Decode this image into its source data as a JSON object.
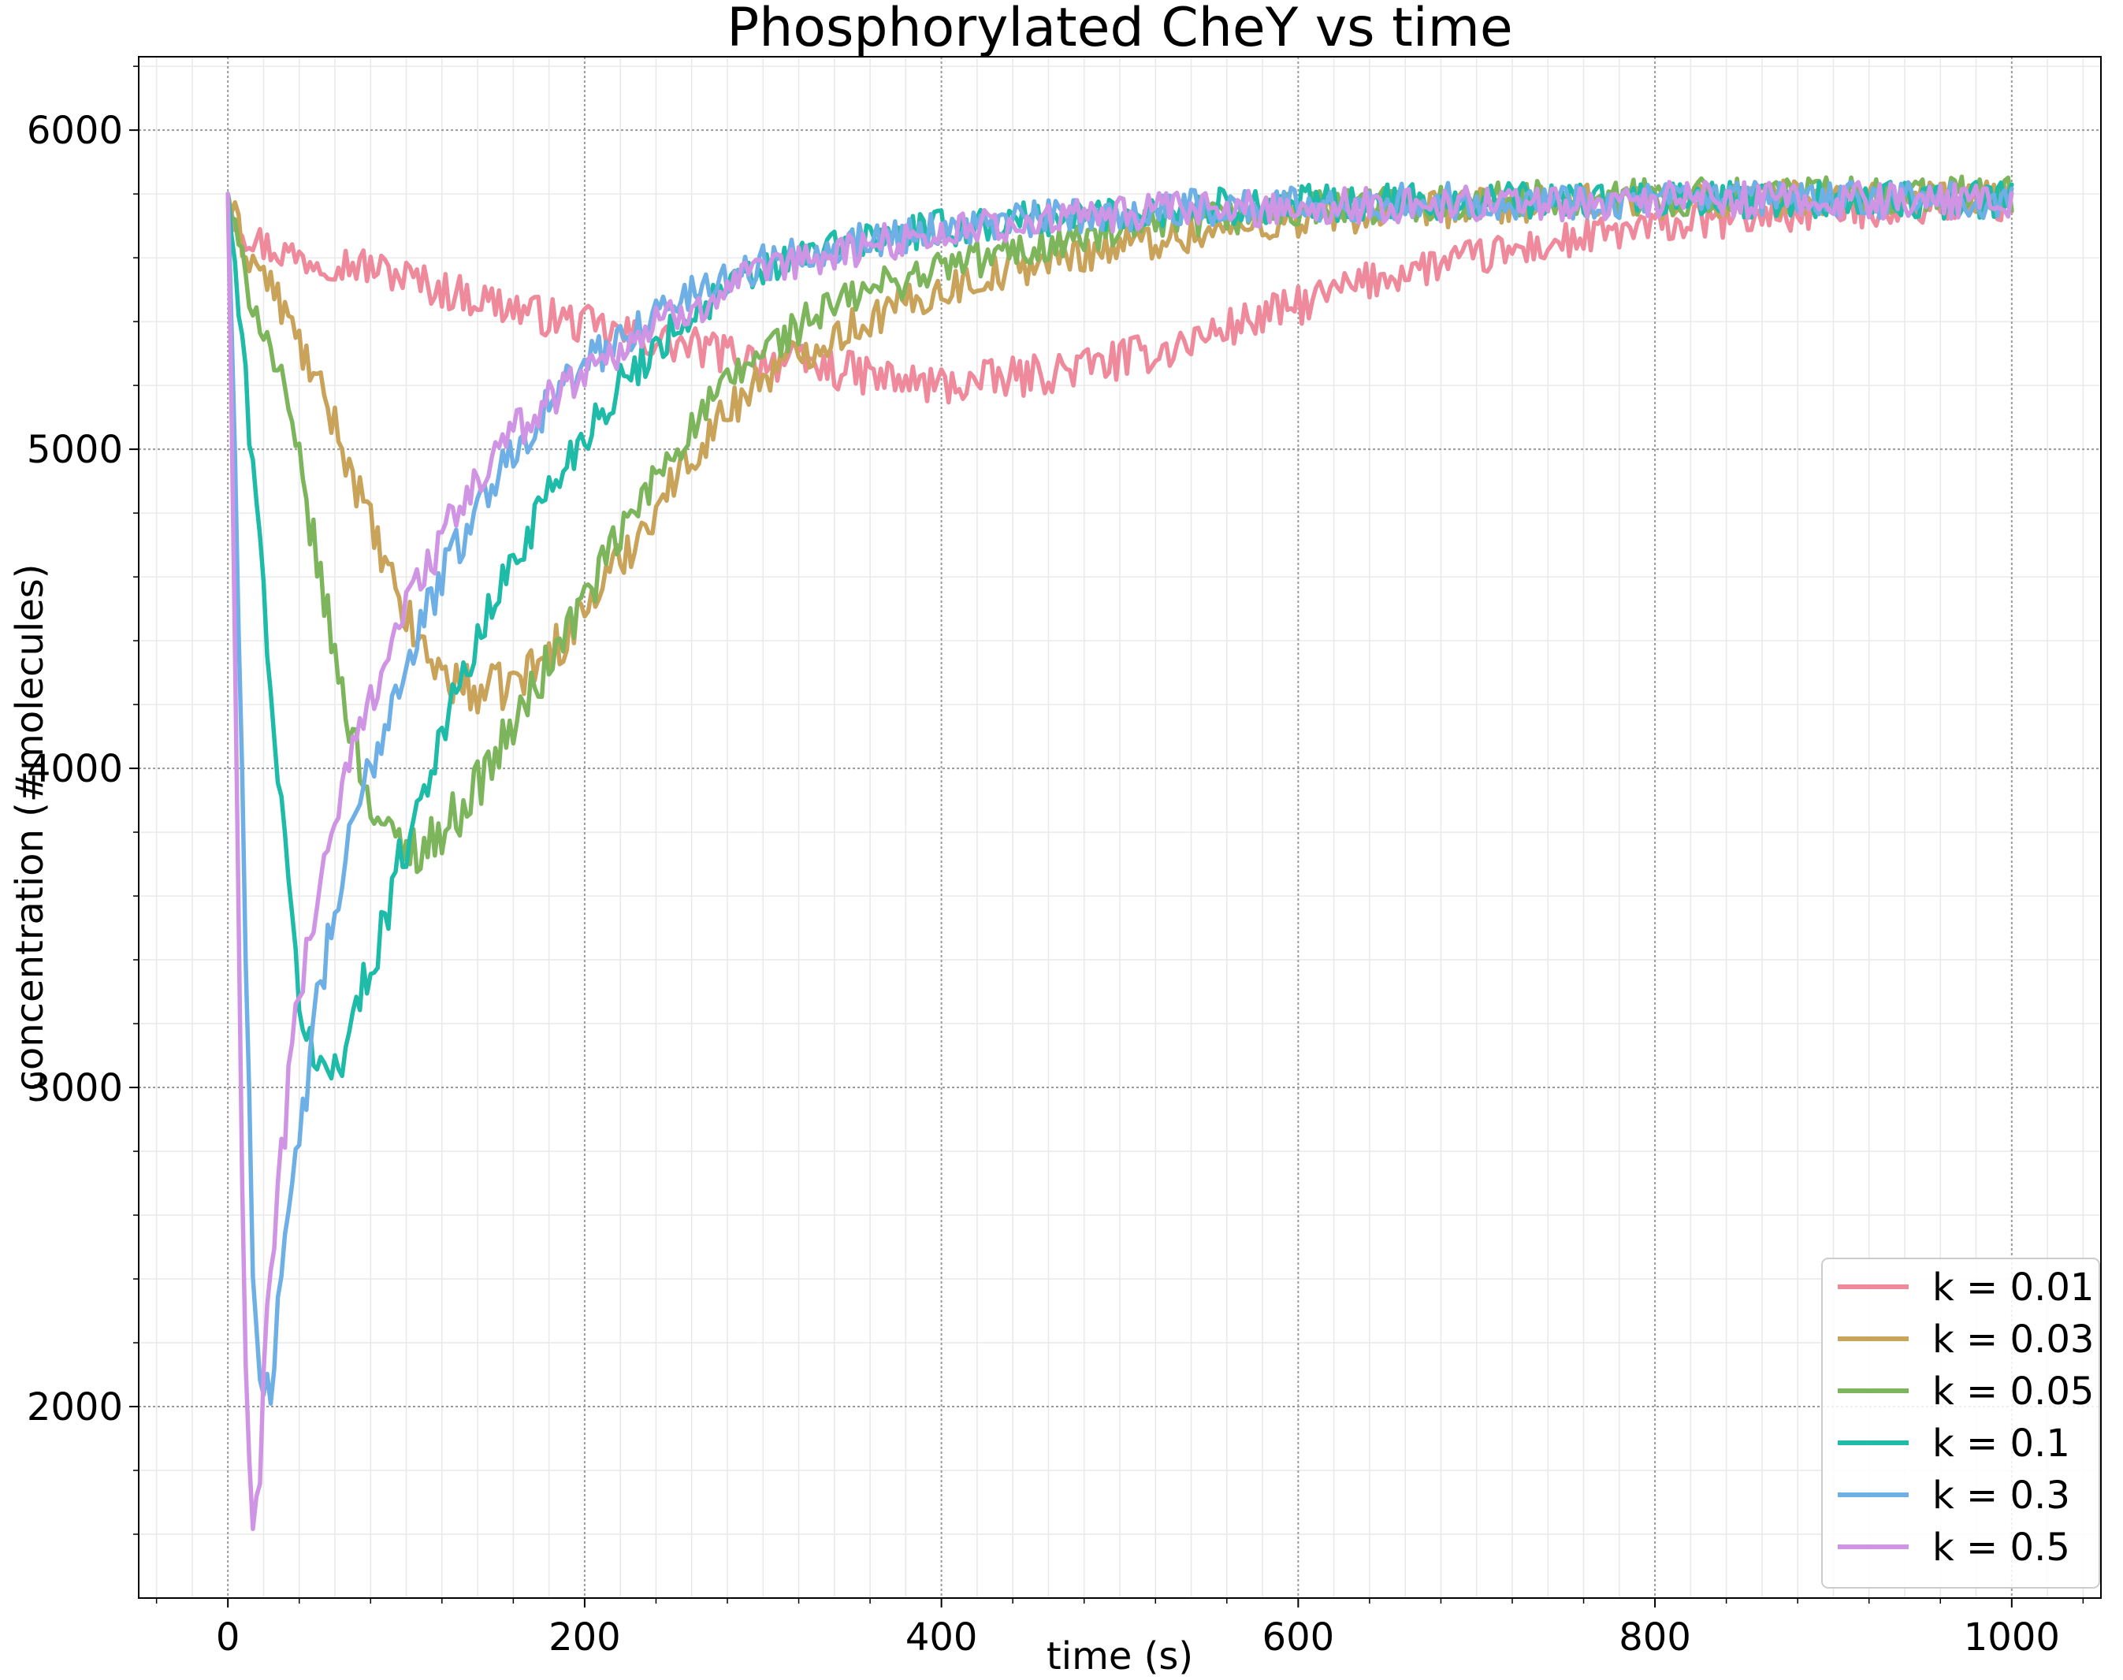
{
  "chart_data": {
    "type": "line",
    "title": "Phosphorylated CheY vs time",
    "xlabel": "time (s)",
    "ylabel": "concentration (#molecules)",
    "xlim": [
      -50,
      1050
    ],
    "ylim": [
      1400,
      6230
    ],
    "xticks": [
      0,
      200,
      400,
      600,
      800,
      1000
    ],
    "yticks": [
      2000,
      3000,
      4000,
      5000,
      6000
    ],
    "xtick_labels": [
      "0",
      "200",
      "400",
      "600",
      "800",
      "1000"
    ],
    "ytick_labels": [
      "2000",
      "3000",
      "4000",
      "5000",
      "6000"
    ],
    "grid": true,
    "legend_position": "lower-right",
    "series": [
      {
        "name": "k = 0.01",
        "color": "#ee8a9c",
        "x": [
          0,
          5,
          10,
          20,
          30,
          40,
          60,
          80,
          100,
          120,
          150,
          175,
          200,
          220,
          250,
          280,
          300,
          330,
          360,
          380,
          400,
          420,
          450,
          480,
          500,
          530,
          560,
          600,
          630,
          660,
          700,
          740,
          780,
          820,
          860,
          900,
          950,
          1000
        ],
        "y": [
          5800,
          5720,
          5680,
          5640,
          5620,
          5600,
          5590,
          5570,
          5540,
          5500,
          5460,
          5420,
          5390,
          5360,
          5330,
          5300,
          5280,
          5260,
          5230,
          5210,
          5200,
          5210,
          5230,
          5260,
          5280,
          5320,
          5380,
          5450,
          5510,
          5560,
          5600,
          5640,
          5680,
          5710,
          5730,
          5750,
          5760,
          5770
        ]
      },
      {
        "name": "k = 0.03",
        "color": "#c9a35a",
        "x": [
          0,
          5,
          10,
          20,
          30,
          40,
          50,
          60,
          70,
          80,
          90,
          100,
          110,
          120,
          130,
          140,
          150,
          160,
          175,
          190,
          200,
          220,
          240,
          260,
          280,
          300,
          330,
          360,
          400,
          450,
          500,
          550,
          600,
          700,
          800,
          900,
          1000
        ],
        "y": [
          5800,
          5700,
          5620,
          5550,
          5450,
          5330,
          5200,
          5080,
          4920,
          4760,
          4600,
          4470,
          4370,
          4300,
          4260,
          4240,
          4250,
          4270,
          4330,
          4420,
          4500,
          4650,
          4820,
          4980,
          5120,
          5230,
          5330,
          5410,
          5500,
          5580,
          5640,
          5680,
          5720,
          5760,
          5780,
          5790,
          5790
        ]
      },
      {
        "name": "k = 0.05",
        "color": "#7cb55b",
        "x": [
          0,
          5,
          10,
          20,
          30,
          40,
          50,
          60,
          70,
          80,
          90,
          100,
          110,
          120,
          130,
          140,
          160,
          180,
          200,
          220,
          250,
          280,
          300,
          330,
          360,
          400,
          450,
          500,
          550,
          600,
          700,
          800,
          900,
          1000
        ],
        "y": [
          5800,
          5650,
          5530,
          5380,
          5200,
          4950,
          4650,
          4350,
          4100,
          3900,
          3780,
          3750,
          3760,
          3800,
          3870,
          3950,
          4130,
          4330,
          4530,
          4730,
          5000,
          5200,
          5310,
          5420,
          5500,
          5570,
          5630,
          5680,
          5720,
          5750,
          5780,
          5790,
          5800,
          5800
        ]
      },
      {
        "name": "k = 0.1",
        "color": "#1dbba8",
        "x": [
          0,
          5,
          10,
          15,
          20,
          25,
          30,
          35,
          40,
          45,
          50,
          55,
          60,
          65,
          70,
          80,
          90,
          100,
          110,
          120,
          140,
          160,
          180,
          200,
          220,
          250,
          280,
          300,
          330,
          360,
          400,
          450,
          500,
          550,
          600,
          700,
          800,
          900,
          1000
        ],
        "y": [
          5800,
          5500,
          5200,
          4900,
          4550,
          4200,
          3850,
          3550,
          3300,
          3150,
          3050,
          3050,
          3080,
          3130,
          3200,
          3380,
          3580,
          3770,
          3950,
          4110,
          4400,
          4650,
          4870,
          5050,
          5200,
          5380,
          5500,
          5560,
          5620,
          5660,
          5690,
          5720,
          5740,
          5760,
          5770,
          5780,
          5780,
          5780,
          5780
        ]
      },
      {
        "name": "k = 0.3",
        "color": "#6eb0e5",
        "x": [
          0,
          3,
          6,
          9,
          12,
          15,
          18,
          21,
          24,
          27,
          30,
          35,
          40,
          45,
          50,
          60,
          70,
          80,
          90,
          100,
          110,
          120,
          140,
          160,
          180,
          200,
          220,
          250,
          280,
          300,
          330,
          360,
          400,
          450,
          500,
          550,
          600,
          700,
          800,
          900,
          1000
        ],
        "y": [
          5800,
          5200,
          4500,
          3700,
          2900,
          2300,
          2100,
          2080,
          2110,
          2200,
          2350,
          2600,
          2850,
          3050,
          3250,
          3550,
          3800,
          4000,
          4180,
          4330,
          4470,
          4600,
          4820,
          5000,
          5140,
          5260,
          5350,
          5460,
          5540,
          5580,
          5630,
          5660,
          5690,
          5720,
          5740,
          5760,
          5770,
          5780,
          5780,
          5780,
          5780
        ]
      },
      {
        "name": "k = 0.5",
        "color": "#cf95e4",
        "x": [
          0,
          3,
          6,
          9,
          12,
          14,
          16,
          18,
          20,
          23,
          26,
          30,
          35,
          40,
          45,
          50,
          60,
          70,
          80,
          90,
          100,
          110,
          120,
          140,
          160,
          180,
          200,
          220,
          250,
          280,
          300,
          330,
          360,
          400,
          450,
          500,
          600,
          700,
          800,
          900,
          1000
        ],
        "y": [
          5800,
          4800,
          3500,
          2300,
          1750,
          1620,
          1700,
          1850,
          2050,
          2300,
          2550,
          2800,
          3050,
          3280,
          3450,
          3600,
          3850,
          4050,
          4220,
          4380,
          4510,
          4620,
          4720,
          4900,
          5050,
          5160,
          5250,
          5320,
          5420,
          5500,
          5550,
          5600,
          5640,
          5680,
          5710,
          5740,
          5760,
          5770,
          5780,
          5780,
          5780
        ]
      }
    ]
  }
}
